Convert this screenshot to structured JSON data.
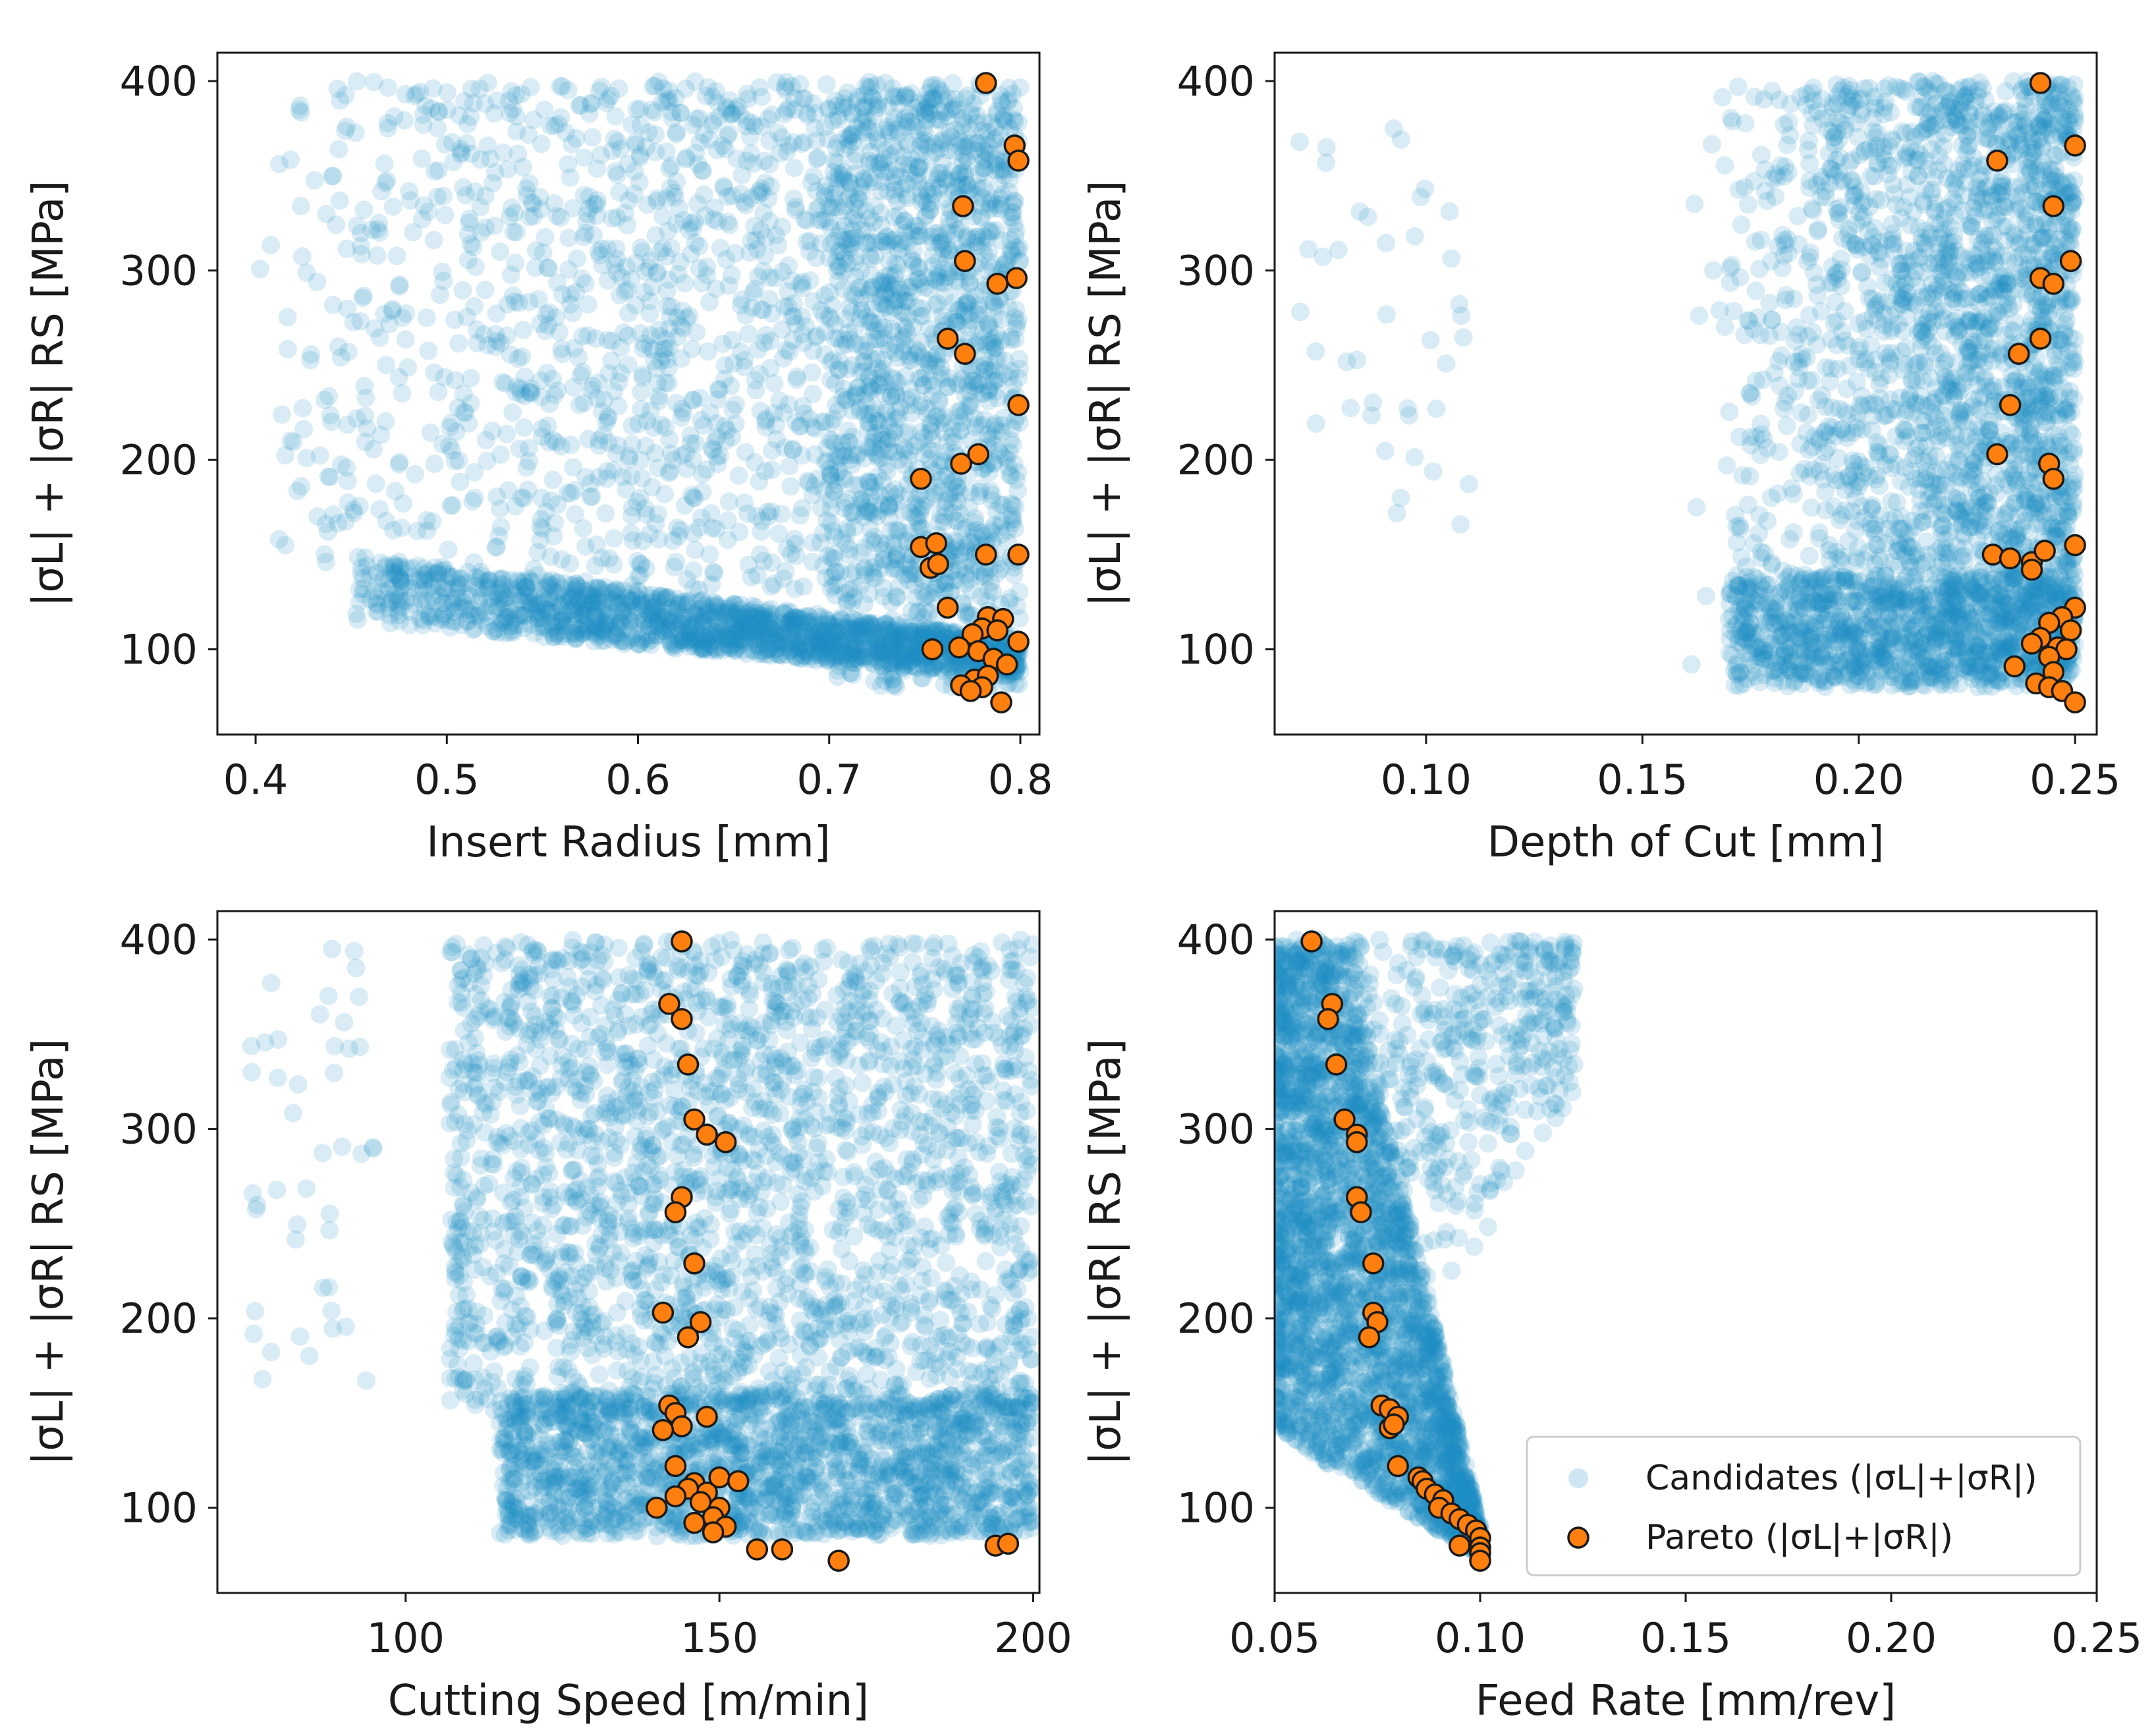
{
  "colors": {
    "candidates": "#1f8fc4",
    "candidates_dense": "#0a77b2",
    "pareto_fill": "#ff7f0e",
    "pareto_edge": "#1a1a1a",
    "axis": "#1a1a1a"
  },
  "legend": {
    "candidates": "Candidates (|σL|+|σR|)",
    "pareto": "Pareto (|σL|+|σR|)"
  },
  "chart_data": [
    {
      "type": "scatter",
      "xlabel": "Insert Radius [mm]",
      "ylabel": "|σL| + |σR| RS [MPa]",
      "xlim": [
        0.38,
        0.81
      ],
      "ylim": [
        55,
        415
      ],
      "xticks": [
        0.4,
        0.5,
        0.6,
        0.7,
        0.8
      ],
      "xtick_labels": [
        "0.4",
        "0.5",
        "0.6",
        "0.7",
        "0.8"
      ],
      "yticks": [
        100,
        200,
        300,
        400
      ],
      "ytick_labels": [
        "100",
        "200",
        "300",
        "400"
      ],
      "legend": null,
      "series": [
        {
          "name": "Candidates (|σL|+|σR|)",
          "style": "candidates",
          "regions": [
            {
              "x": [
                0.4,
                0.8
              ],
              "y": [
                130,
                400
              ],
              "shape": "top-right-dense",
              "n": 1700
            },
            {
              "x": [
                0.45,
                0.8
              ],
              "y": [
                85,
                150
              ],
              "shape": "band-descending",
              "n": 1600
            },
            {
              "x": [
                0.7,
                0.8
              ],
              "y": [
                80,
                400
              ],
              "shape": "uniform",
              "n": 900
            }
          ]
        },
        {
          "name": "Pareto (|σL|+|σR|)",
          "style": "pareto",
          "points": [
            [
              0.782,
              399
            ],
            [
              0.797,
              366
            ],
            [
              0.799,
              358
            ],
            [
              0.77,
              334
            ],
            [
              0.771,
              305
            ],
            [
              0.788,
              293
            ],
            [
              0.798,
              296
            ],
            [
              0.762,
              264
            ],
            [
              0.771,
              256
            ],
            [
              0.799,
              229
            ],
            [
              0.778,
              203
            ],
            [
              0.769,
              198
            ],
            [
              0.748,
              190
            ],
            [
              0.748,
              154
            ],
            [
              0.756,
              156
            ],
            [
              0.753,
              143
            ],
            [
              0.757,
              145
            ],
            [
              0.782,
              150
            ],
            [
              0.799,
              150
            ],
            [
              0.762,
              122
            ],
            [
              0.783,
              117
            ],
            [
              0.791,
              116
            ],
            [
              0.78,
              111
            ],
            [
              0.775,
              108
            ],
            [
              0.788,
              110
            ],
            [
              0.754,
              100
            ],
            [
              0.768,
              101
            ],
            [
              0.799,
              104
            ],
            [
              0.778,
              99
            ],
            [
              0.786,
              95
            ],
            [
              0.793,
              92
            ],
            [
              0.776,
              84
            ],
            [
              0.783,
              86
            ],
            [
              0.769,
              81
            ],
            [
              0.78,
              80
            ],
            [
              0.774,
              78
            ],
            [
              0.79,
              72
            ]
          ]
        }
      ]
    },
    {
      "type": "scatter",
      "xlabel": "Depth of Cut [mm]",
      "ylabel": "|σL| + |σR| RS [MPa]",
      "xlim": [
        0.065,
        0.255
      ],
      "ylim": [
        55,
        415
      ],
      "xticks": [
        0.1,
        0.15,
        0.2,
        0.25
      ],
      "xtick_labels": [
        "0.10",
        "0.15",
        "0.20",
        "0.25"
      ],
      "yticks": [
        100,
        200,
        300,
        400
      ],
      "ytick_labels": [
        "100",
        "200",
        "300",
        "400"
      ],
      "legend": null,
      "series": [
        {
          "name": "Candidates (|σL|+|σR|)",
          "style": "candidates",
          "regions": [
            {
              "x": [
                0.07,
                0.11
              ],
              "y": [
                160,
                400
              ],
              "shape": "sparse",
              "n": 40
            },
            {
              "x": [
                0.16,
                0.25
              ],
              "y": [
                85,
                400
              ],
              "shape": "right-dense",
              "n": 2400
            },
            {
              "x": [
                0.17,
                0.25
              ],
              "y": [
                80,
                140
              ],
              "shape": "uniform",
              "n": 900
            }
          ]
        },
        {
          "name": "Pareto (|σL|+|σR|)",
          "style": "pareto",
          "points": [
            [
              0.242,
              399
            ],
            [
              0.25,
              366
            ],
            [
              0.232,
              358
            ],
            [
              0.245,
              334
            ],
            [
              0.249,
              305
            ],
            [
              0.242,
              296
            ],
            [
              0.245,
              293
            ],
            [
              0.242,
              264
            ],
            [
              0.237,
              256
            ],
            [
              0.235,
              229
            ],
            [
              0.232,
              203
            ],
            [
              0.244,
              198
            ],
            [
              0.245,
              190
            ],
            [
              0.25,
              155
            ],
            [
              0.231,
              150
            ],
            [
              0.235,
              148
            ],
            [
              0.24,
              146
            ],
            [
              0.24,
              142
            ],
            [
              0.243,
              152
            ],
            [
              0.25,
              122
            ],
            [
              0.247,
              117
            ],
            [
              0.244,
              114
            ],
            [
              0.249,
              110
            ],
            [
              0.242,
              106
            ],
            [
              0.24,
              103
            ],
            [
              0.246,
              101
            ],
            [
              0.248,
              100
            ],
            [
              0.244,
              96
            ],
            [
              0.236,
              91
            ],
            [
              0.245,
              88
            ],
            [
              0.241,
              82
            ],
            [
              0.244,
              80
            ],
            [
              0.247,
              78
            ],
            [
              0.25,
              72
            ]
          ]
        }
      ]
    },
    {
      "type": "scatter",
      "xlabel": "Cutting Speed [m/min]",
      "ylabel": "|σL| + |σR| RS [MPa]",
      "xlim": [
        70,
        201
      ],
      "ylim": [
        55,
        415
      ],
      "xticks": [
        100,
        150,
        200
      ],
      "xtick_labels": [
        "100",
        "150",
        "200"
      ],
      "yticks": [
        100,
        200,
        300,
        400
      ],
      "ytick_labels": [
        "100",
        "200",
        "300",
        "400"
      ],
      "legend": null,
      "series": [
        {
          "name": "Candidates (|σL|+|σR|)",
          "style": "candidates",
          "regions": [
            {
              "x": [
                75,
                95
              ],
              "y": [
                160,
                400
              ],
              "shape": "sparse",
              "n": 45
            },
            {
              "x": [
                107,
                200
              ],
              "y": [
                150,
                400
              ],
              "shape": "uniform",
              "n": 2200
            },
            {
              "x": [
                115,
                200
              ],
              "y": [
                85,
                160
              ],
              "shape": "uniform",
              "n": 1800
            }
          ]
        },
        {
          "name": "Pareto (|σL|+|σR|)",
          "style": "pareto",
          "points": [
            [
              144,
              399
            ],
            [
              142,
              366
            ],
            [
              144,
              358
            ],
            [
              145,
              334
            ],
            [
              146,
              305
            ],
            [
              148,
              297
            ],
            [
              151,
              293
            ],
            [
              144,
              264
            ],
            [
              143,
              256
            ],
            [
              146,
              229
            ],
            [
              141,
              203
            ],
            [
              147,
              198
            ],
            [
              145,
              190
            ],
            [
              142,
              154
            ],
            [
              143,
              150
            ],
            [
              148,
              148
            ],
            [
              144,
              143
            ],
            [
              141,
              141
            ],
            [
              143,
              122
            ],
            [
              150,
              116
            ],
            [
              146,
              113
            ],
            [
              153,
              114
            ],
            [
              148,
              108
            ],
            [
              145,
              110
            ],
            [
              143,
              106
            ],
            [
              140,
              100
            ],
            [
              147,
              103
            ],
            [
              150,
              100
            ],
            [
              149,
              95
            ],
            [
              146,
              92
            ],
            [
              151,
              90
            ],
            [
              149,
              87
            ],
            [
              156,
              78
            ],
            [
              160,
              78
            ],
            [
              169,
              72
            ],
            [
              194,
              80
            ],
            [
              196,
              81
            ]
          ]
        }
      ]
    },
    {
      "type": "scatter",
      "xlabel": "Feed Rate [mm/rev]",
      "ylabel": "|σL| + |σR| RS [MPa]",
      "xlim": [
        0.05,
        0.25
      ],
      "ylim": [
        55,
        415
      ],
      "xticks": [
        0.05,
        0.1,
        0.15,
        0.2,
        0.25
      ],
      "xtick_labels": [
        "0.05",
        "0.10",
        "0.15",
        "0.20",
        "0.25"
      ],
      "yticks": [
        100,
        200,
        300,
        400
      ],
      "ytick_labels": [
        "100",
        "200",
        "300",
        "400"
      ],
      "legend": "lower-right",
      "series": [
        {
          "name": "Candidates (|σL|+|σR|)",
          "style": "candidates",
          "regions": [
            {
              "x": [
                0.05,
                0.1
              ],
              "y": [
                75,
                400
              ],
              "shape": "wedge-dense",
              "n": 3000
            },
            {
              "x": [
                0.06,
                0.123
              ],
              "y": [
                100,
                400
              ],
              "shape": "sparse-right",
              "n": 500
            }
          ]
        },
        {
          "name": "Pareto (|σL|+|σR|)",
          "style": "pareto",
          "points": [
            [
              0.059,
              399
            ],
            [
              0.064,
              366
            ],
            [
              0.063,
              358
            ],
            [
              0.065,
              334
            ],
            [
              0.067,
              305
            ],
            [
              0.07,
              297
            ],
            [
              0.07,
              293
            ],
            [
              0.07,
              264
            ],
            [
              0.071,
              256
            ],
            [
              0.074,
              229
            ],
            [
              0.074,
              203
            ],
            [
              0.075,
              198
            ],
            [
              0.073,
              190
            ],
            [
              0.076,
              154
            ],
            [
              0.078,
              152
            ],
            [
              0.08,
              148
            ],
            [
              0.078,
              142
            ],
            [
              0.079,
              144
            ],
            [
              0.08,
              122
            ],
            [
              0.085,
              116
            ],
            [
              0.086,
              114
            ],
            [
              0.087,
              110
            ],
            [
              0.089,
              107
            ],
            [
              0.091,
              104
            ],
            [
              0.09,
              100
            ],
            [
              0.093,
              97
            ],
            [
              0.095,
              94
            ],
            [
              0.097,
              91
            ],
            [
              0.099,
              88
            ],
            [
              0.1,
              84
            ],
            [
              0.095,
              80
            ],
            [
              0.1,
              79
            ],
            [
              0.1,
              76
            ],
            [
              0.1,
              72
            ]
          ]
        }
      ]
    }
  ]
}
